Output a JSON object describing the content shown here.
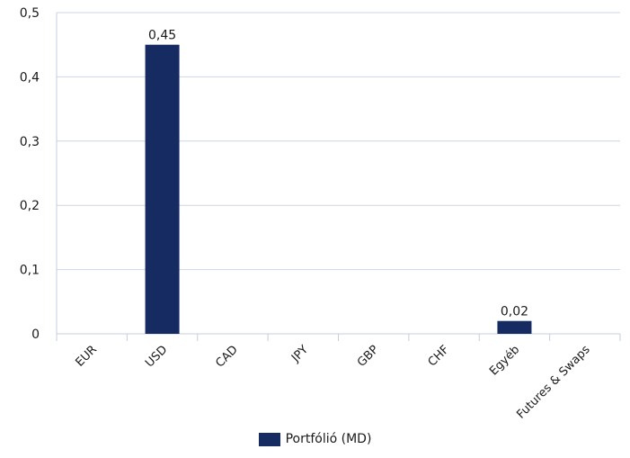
{
  "chart_data": {
    "type": "bar",
    "categories": [
      "EUR",
      "USD",
      "CAD",
      "JPY",
      "GBP",
      "CHF",
      "Egyéb",
      "Futures & Swaps"
    ],
    "series": [
      {
        "name": "Portfólió (MD)",
        "values": [
          0,
          0.45,
          0,
          0,
          0,
          0,
          0.02,
          0
        ],
        "data_labels": [
          "",
          "0,45",
          "",
          "",
          "",
          "",
          "0,02",
          ""
        ]
      }
    ],
    "yticks": [
      "0",
      "0,1",
      "0,2",
      "0,3",
      "0,4",
      "0,5"
    ],
    "ylim": [
      0,
      0.5
    ],
    "grid": true,
    "legend_position": "bottom",
    "title": "",
    "xlabel": "",
    "ylabel": "",
    "colors": {
      "bar": "#172b63",
      "grid": "#cfd6e6",
      "axis": "#c6cede"
    }
  }
}
